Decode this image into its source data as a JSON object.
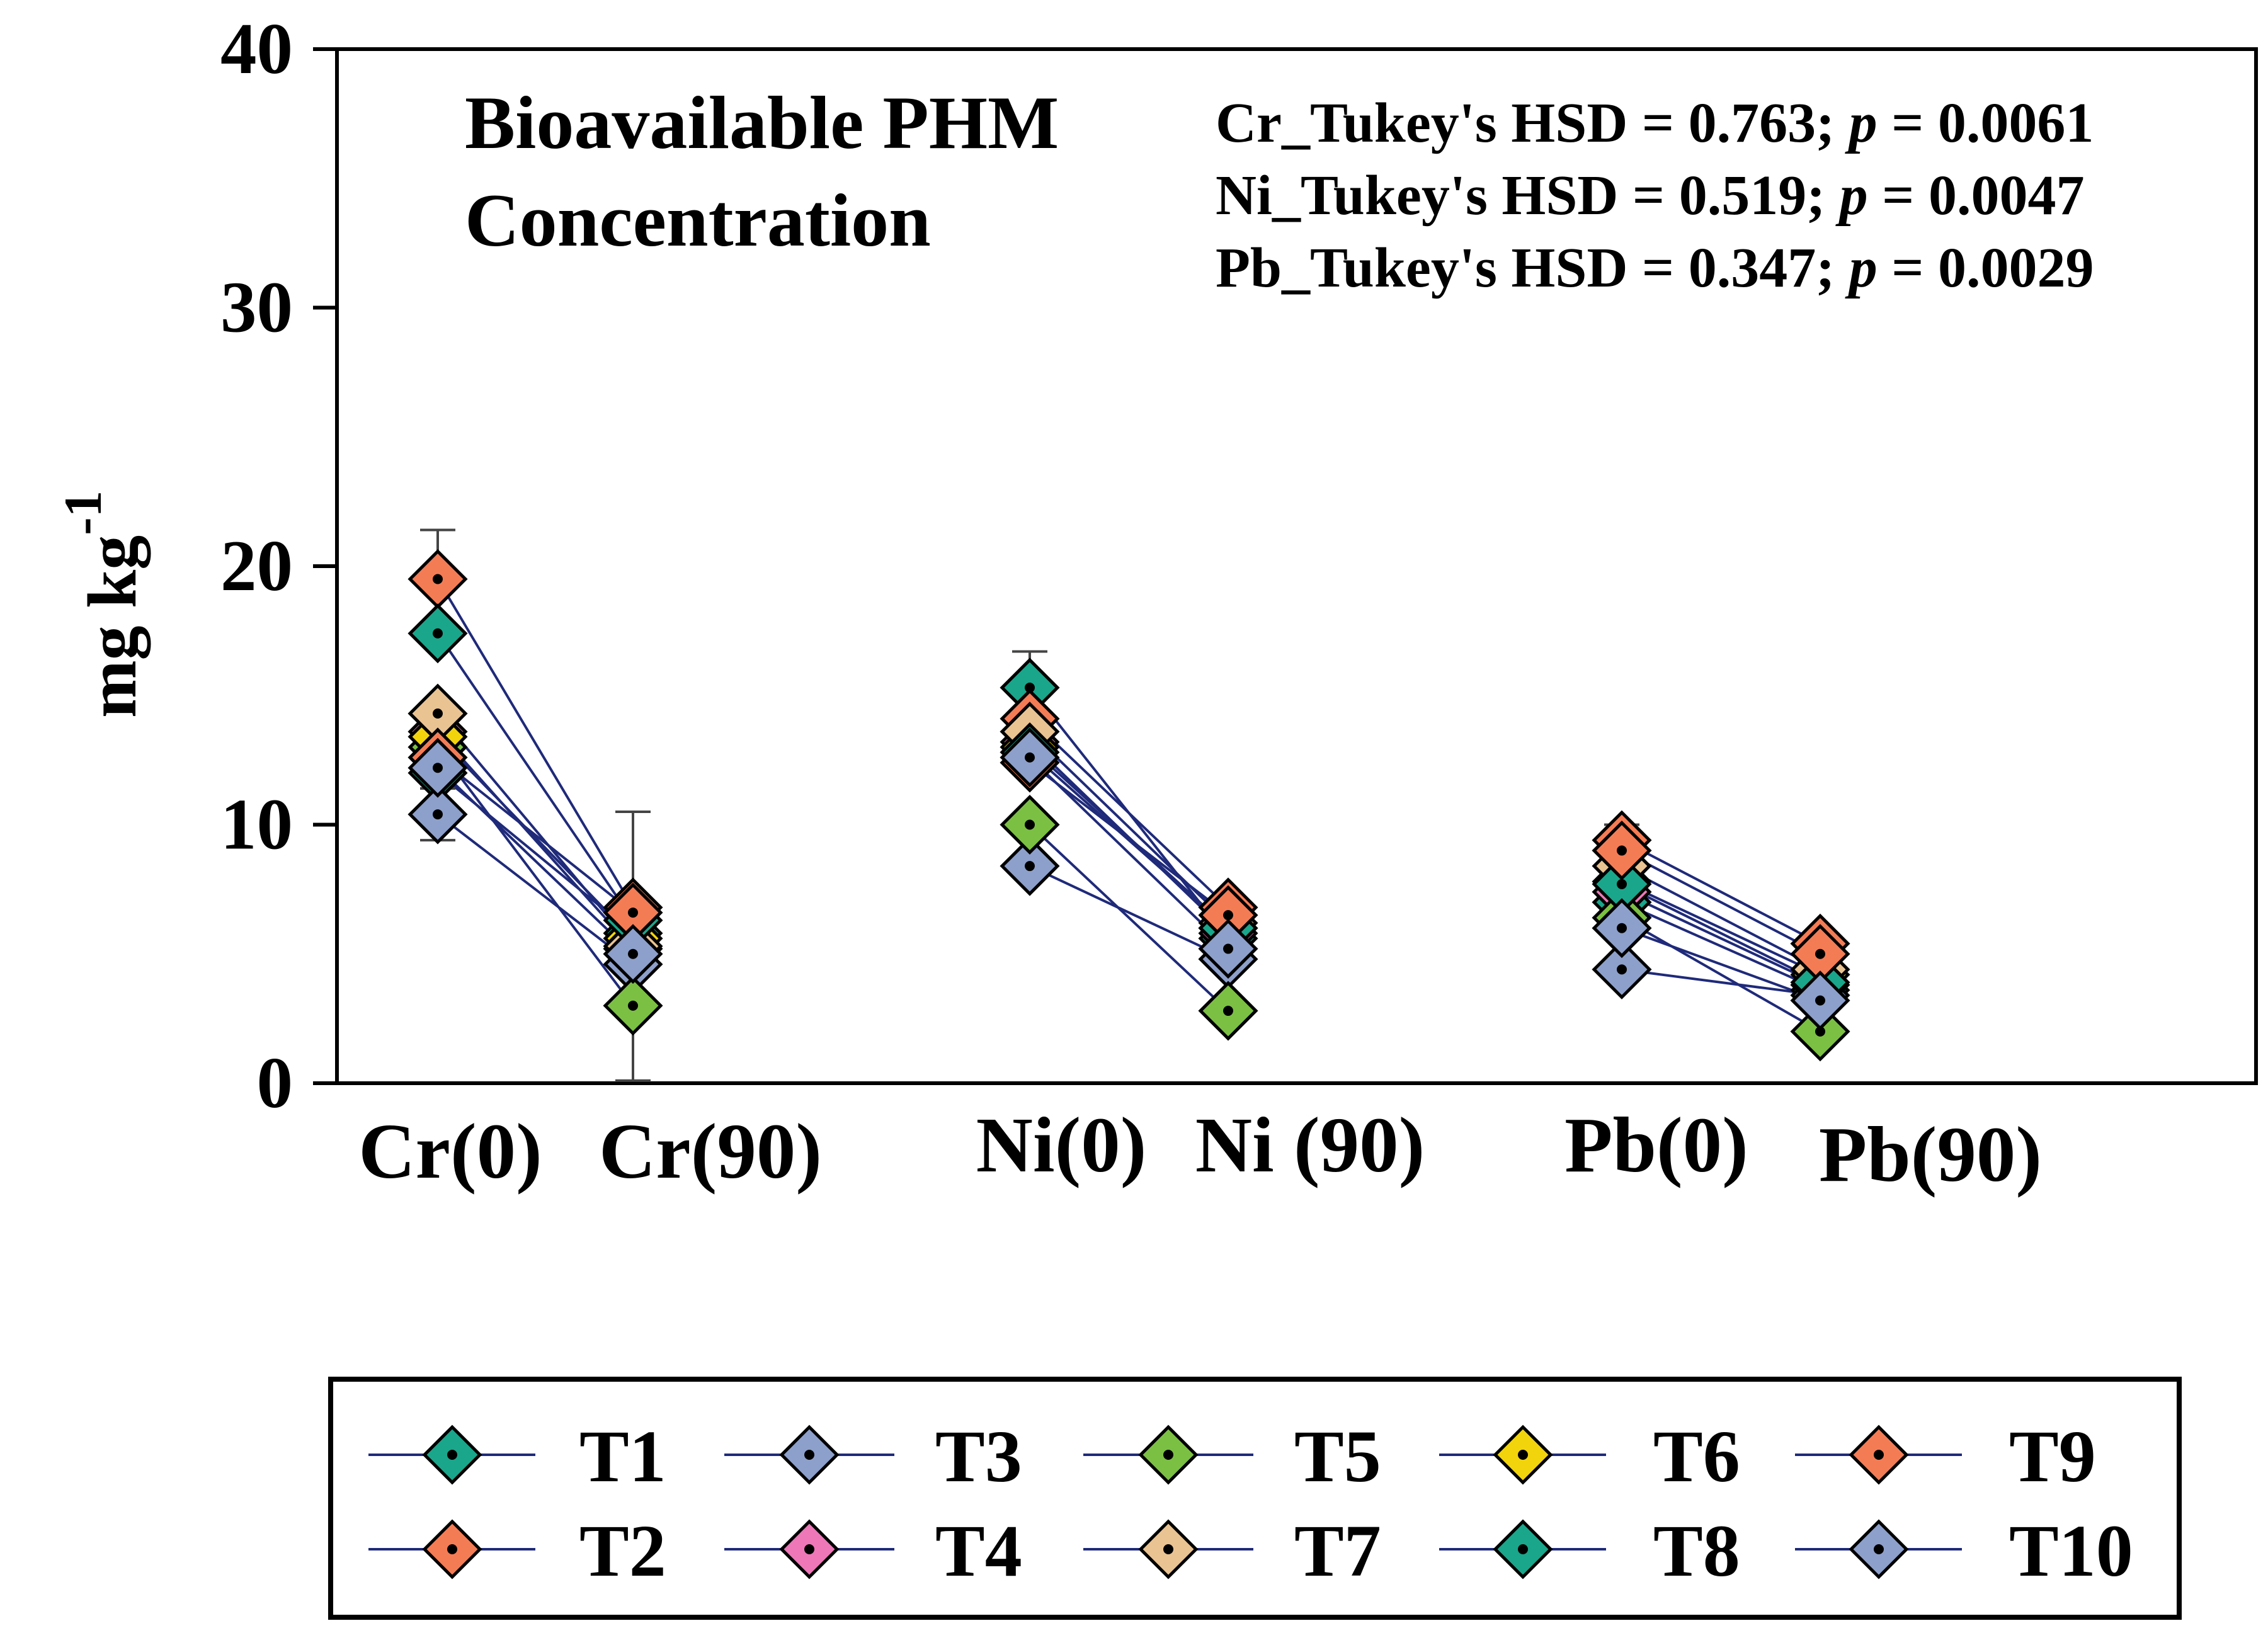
{
  "chart_data": {
    "type": "line",
    "title_lines": [
      "Bioavailable PHM",
      "Concentration"
    ],
    "annotations": [
      {
        "prefix": "Cr_Tukey's HSD = 0.763; ",
        "p_label": "p",
        "suffix": " = 0.0061"
      },
      {
        "prefix": "Ni_Tukey's HSD = 0.519; ",
        "p_label": "p",
        "suffix": " = 0.0047"
      },
      {
        "prefix": "Pb_Tukey's HSD = 0.347; ",
        "p_label": "p",
        "suffix": " = 0.0029"
      }
    ],
    "ylabel": "mg kg",
    "ylabel_superscript": "-1",
    "ylim": [
      0,
      40
    ],
    "yticks": [
      0,
      10,
      20,
      30,
      40
    ],
    "categories": [
      "Cr(0)",
      "Cr(90)",
      "Ni(0)",
      "Ni (90)",
      "Pb(0)",
      "Pb(90)"
    ],
    "groups": [
      [
        "Cr(0)",
        "Cr(90)"
      ],
      [
        "Ni(0)",
        "Ni (90)"
      ],
      [
        "Pb(0)",
        "Pb(90)"
      ]
    ],
    "line_color": "#1f2a7a",
    "series": [
      {
        "name": "T1",
        "color": "#1aa68a",
        "values": [
          12.0,
          5.8,
          15.3,
          5.6,
          7.0,
          3.6
        ]
      },
      {
        "name": "T2",
        "color": "#f47c55",
        "values": [
          19.5,
          6.8,
          14.1,
          6.8,
          9.4,
          5.4
        ]
      },
      {
        "name": "T3",
        "color": "#8da0cb",
        "values": [
          10.4,
          4.6,
          8.4,
          4.8,
          4.4,
          3.4
        ]
      },
      {
        "name": "T4",
        "color": "#ee77b8",
        "values": [
          13.6,
          5.2,
          13.2,
          5.8,
          7.4,
          3.8
        ]
      },
      {
        "name": "T5",
        "color": "#7bc043",
        "values": [
          13.0,
          3.0,
          10.0,
          2.8,
          6.4,
          2.0
        ]
      },
      {
        "name": "T6",
        "color": "#f2d40c",
        "values": [
          13.4,
          5.6,
          13.0,
          6.0,
          7.8,
          4.2
        ]
      },
      {
        "name": "T7",
        "color": "#e9c392",
        "values": [
          14.3,
          5.3,
          13.6,
          6.2,
          8.4,
          4.4
        ]
      },
      {
        "name": "T8",
        "color": "#1aa68a",
        "values": [
          17.4,
          6.3,
          12.8,
          6.0,
          7.7,
          3.9
        ]
      },
      {
        "name": "T9",
        "color": "#f47c55",
        "values": [
          12.6,
          6.6,
          12.4,
          6.5,
          9.0,
          5.0
        ]
      },
      {
        "name": "T10",
        "color": "#8da0cb",
        "values": [
          12.2,
          5.0,
          12.6,
          5.2,
          6.0,
          3.2
        ]
      }
    ],
    "error_bars": [
      {
        "category": "Cr(0)",
        "value": 19.5,
        "error": 1.9
      },
      {
        "category": "Cr(0)",
        "value": 10.4,
        "error": 1.0
      },
      {
        "category": "Cr(90)",
        "value": 6.8,
        "error": 3.7
      },
      {
        "category": "Cr(90)",
        "value": 3.0,
        "error": 2.9
      },
      {
        "category": "Ni(0)",
        "value": 15.3,
        "error": 1.4
      },
      {
        "category": "Pb(0)",
        "value": 9.4,
        "error": 0.6
      }
    ],
    "legend": {
      "placement": "bottom",
      "rows": [
        [
          "T1",
          "T3",
          "T5",
          "T6",
          "T9"
        ],
        [
          "T2",
          "T4",
          "T7",
          "T8",
          "T10"
        ]
      ]
    }
  }
}
